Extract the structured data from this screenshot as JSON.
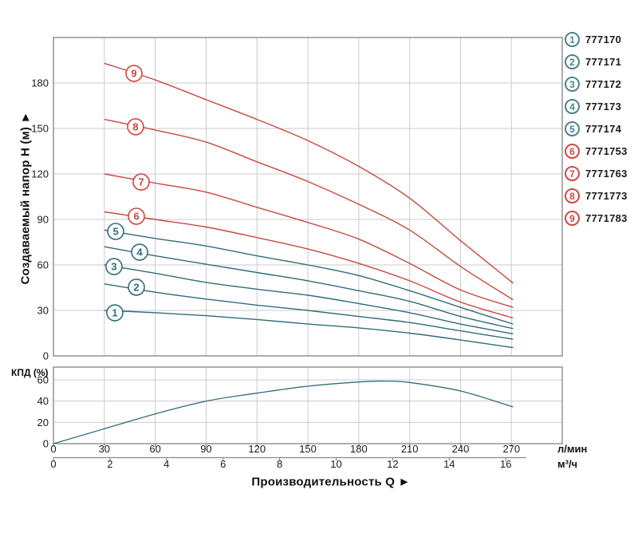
{
  "axis_titles": {
    "y_head": "Создаваемый напор Н (м) ►",
    "x_flow": "Производительность Q ►",
    "eff": "КПД (%)",
    "unit_flow_lmin": "л/мин",
    "unit_flow_m3h": "м³/ч"
  },
  "colors": {
    "teal_curve": "#2e6e79",
    "red_curve": "#c9483f",
    "teal_legend": "#4a858c",
    "red_legend": "#cb4a45",
    "grid": "#cbcbcb",
    "border": "#8c8c8c",
    "tick_text": "#1b1b1b"
  },
  "legend": {
    "items": [
      {
        "num": "1",
        "code": "777170",
        "color_role": "teal"
      },
      {
        "num": "2",
        "code": "777171",
        "color_role": "teal"
      },
      {
        "num": "3",
        "code": "777172",
        "color_role": "teal"
      },
      {
        "num": "4",
        "code": "777173",
        "color_role": "teal"
      },
      {
        "num": "5",
        "code": "777174",
        "color_role": "teal"
      },
      {
        "num": "6",
        "code": "7771753",
        "color_role": "red"
      },
      {
        "num": "7",
        "code": "7771763",
        "color_role": "red"
      },
      {
        "num": "8",
        "code": "7771773",
        "color_role": "red"
      },
      {
        "num": "9",
        "code": "7771783",
        "color_role": "red"
      }
    ]
  },
  "chart_data": [
    {
      "type": "line",
      "name": "head-vs-flow",
      "title": "",
      "xlabel": "Производительность Q",
      "ylabel": "Создаваемый напор Н (м)",
      "x_unit_primary": "л/мин",
      "x_unit_secondary": "м³/ч",
      "xlim_lmin": [
        0,
        300
      ],
      "ylim_m": [
        0,
        210
      ],
      "grid": true,
      "legend_position": "right",
      "x_ticks_lmin": [
        0,
        30,
        60,
        90,
        120,
        150,
        180,
        210,
        240,
        270
      ],
      "x_ticks_m3h": [
        0,
        2,
        4,
        6,
        8,
        10,
        12,
        14,
        16
      ],
      "y_ticks_m": [
        0,
        30,
        60,
        90,
        120,
        150,
        180
      ],
      "series": [
        {
          "id": "1",
          "model": "777170",
          "color_role": "teal",
          "points_q_h": [
            [
              30,
              30
            ],
            [
              60,
              28.5
            ],
            [
              90,
              26.5
            ],
            [
              120,
              24
            ],
            [
              150,
              21
            ],
            [
              180,
              18.5
            ],
            [
              210,
              15
            ],
            [
              240,
              10.5
            ],
            [
              271,
              5.5
            ]
          ],
          "label_at_q_h": [
            36.2,
            28.4
          ]
        },
        {
          "id": "2",
          "model": "777171",
          "color_role": "teal",
          "points_q_h": [
            [
              30,
              47.5
            ],
            [
              60,
              42
            ],
            [
              90,
              37.5
            ],
            [
              120,
              33.5
            ],
            [
              150,
              30
            ],
            [
              180,
              26
            ],
            [
              210,
              22
            ],
            [
              240,
              16.5
            ],
            [
              271,
              11
            ]
          ],
          "label_at_q_h": [
            48.9,
            45.3
          ]
        },
        {
          "id": "3",
          "model": "777172",
          "color_role": "teal",
          "points_q_h": [
            [
              30,
              60
            ],
            [
              60,
              54.5
            ],
            [
              90,
              48.5
            ],
            [
              120,
              44
            ],
            [
              150,
              40
            ],
            [
              180,
              34.5
            ],
            [
              210,
              28.5
            ],
            [
              240,
              21
            ],
            [
              271,
              14.5
            ]
          ],
          "label_at_q_h": [
            35.7,
            58.9
          ]
        },
        {
          "id": "4",
          "model": "777173",
          "color_role": "teal",
          "points_q_h": [
            [
              30,
              72
            ],
            [
              60,
              66
            ],
            [
              90,
              60.5
            ],
            [
              120,
              55
            ],
            [
              150,
              49.5
            ],
            [
              180,
              43
            ],
            [
              210,
              36
            ],
            [
              240,
              26
            ],
            [
              271,
              18
            ]
          ],
          "label_at_q_h": [
            50.8,
            68.4
          ]
        },
        {
          "id": "5",
          "model": "777174",
          "color_role": "teal",
          "points_q_h": [
            [
              30,
              83
            ],
            [
              60,
              77.5
            ],
            [
              90,
              72.5
            ],
            [
              120,
              66
            ],
            [
              150,
              60
            ],
            [
              180,
              53
            ],
            [
              210,
              43
            ],
            [
              240,
              32
            ],
            [
              271,
              21
            ]
          ],
          "label_at_q_h": [
            36.7,
            82.1
          ]
        },
        {
          "id": "6",
          "model": "7771753",
          "color_role": "red",
          "points_q_h": [
            [
              30,
              95
            ],
            [
              60,
              90
            ],
            [
              90,
              85
            ],
            [
              120,
              78
            ],
            [
              150,
              70.5
            ],
            [
              180,
              61
            ],
            [
              210,
              49.5
            ],
            [
              240,
              35.5
            ],
            [
              271,
              25
            ]
          ],
          "label_at_q_h": [
            48.9,
            92.1
          ]
        },
        {
          "id": "7",
          "model": "7771763",
          "color_role": "red",
          "points_q_h": [
            [
              30,
              120
            ],
            [
              60,
              114
            ],
            [
              90,
              108
            ],
            [
              120,
              98
            ],
            [
              150,
              88
            ],
            [
              180,
              77
            ],
            [
              210,
              61
            ],
            [
              240,
              43.5
            ],
            [
              271,
              32
            ]
          ],
          "label_at_q_h": [
            51.7,
            114.7
          ]
        },
        {
          "id": "8",
          "model": "7771773",
          "color_role": "red",
          "points_q_h": [
            [
              30,
              156
            ],
            [
              60,
              149
            ],
            [
              90,
              141
            ],
            [
              120,
              128
            ],
            [
              150,
              115
            ],
            [
              180,
              100
            ],
            [
              210,
              83
            ],
            [
              240,
              59
            ],
            [
              271,
              37
            ]
          ],
          "label_at_q_h": [
            48.4,
            151.1
          ]
        },
        {
          "id": "9",
          "model": "7771783",
          "color_role": "red",
          "points_q_h": [
            [
              30,
              193
            ],
            [
              60,
              182
            ],
            [
              90,
              169
            ],
            [
              120,
              156
            ],
            [
              150,
              142
            ],
            [
              180,
              125
            ],
            [
              210,
              104
            ],
            [
              240,
              76
            ],
            [
              271,
              48
            ]
          ],
          "label_at_q_h": [
            47.5,
            186.3
          ]
        }
      ]
    },
    {
      "type": "line",
      "name": "efficiency-vs-flow",
      "ylabel": "КПД (%)",
      "ylim_pct": [
        0,
        72
      ],
      "y_ticks_pct": [
        0,
        20,
        40,
        60
      ],
      "grid": true,
      "series": [
        {
          "id": "eff",
          "color_role": "teal",
          "points_q_pct": [
            [
              0,
              0
            ],
            [
              30,
              14
            ],
            [
              60,
              28
            ],
            [
              90,
              40
            ],
            [
              120,
              47.5
            ],
            [
              150,
              54
            ],
            [
              180,
              58
            ],
            [
              195,
              58.8
            ],
            [
              210,
              57.5
            ],
            [
              240,
              49.5
            ],
            [
              271,
              34.5
            ]
          ]
        }
      ]
    }
  ]
}
